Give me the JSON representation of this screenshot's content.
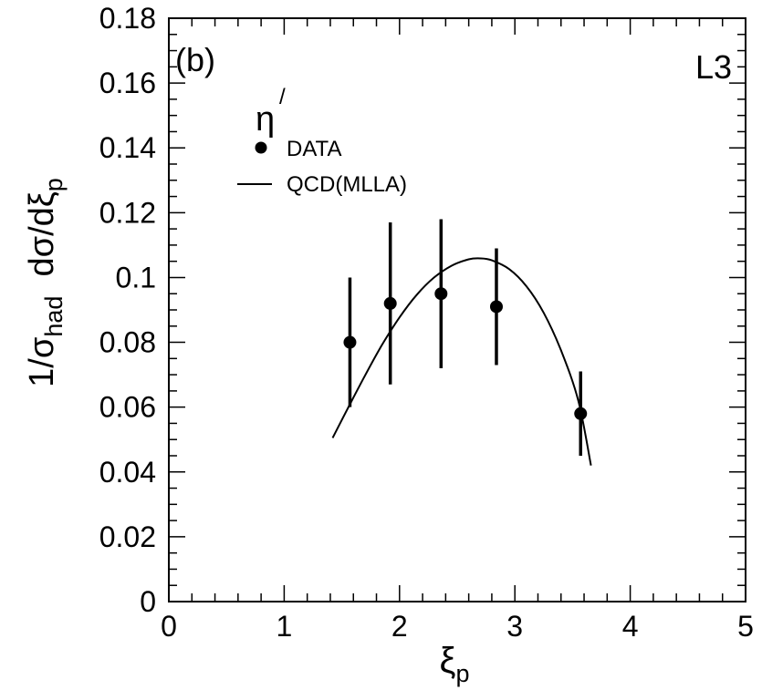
{
  "chart_data": {
    "type": "scatter",
    "panel_label": "(b)",
    "experiment_label": "L3",
    "particle_label": "η",
    "particle_prime": "/",
    "xlabel": "ξ",
    "xlabel_sub": "p",
    "ylabel_parts": {
      "prefix": "1/σ",
      "sub1": "had",
      "middle": "  dσ/dξ",
      "sub2": "p"
    },
    "xlim": [
      0,
      5
    ],
    "ylim": [
      0,
      0.18
    ],
    "x_ticks": [
      0,
      1,
      2,
      3,
      4,
      5
    ],
    "x_tick_labels": [
      "0",
      "1",
      "2",
      "3",
      "4",
      "5"
    ],
    "y_ticks": [
      0,
      0.02,
      0.04,
      0.06,
      0.08,
      0.1,
      0.12,
      0.14,
      0.16,
      0.18
    ],
    "y_tick_labels": [
      "0",
      "0.02",
      "0.04",
      "0.06",
      "0.08",
      "0.1",
      "0.12",
      "0.14",
      "0.16",
      "0.18"
    ],
    "grid": false,
    "legend_position": "top-left",
    "series": [
      {
        "name": "DATA",
        "kind": "points_with_errors",
        "x": [
          1.57,
          1.92,
          2.36,
          2.84,
          3.57
        ],
        "y": [
          0.08,
          0.092,
          0.095,
          0.091,
          0.058
        ],
        "err_low": [
          0.02,
          0.025,
          0.023,
          0.018,
          0.013
        ],
        "err_high": [
          0.02,
          0.025,
          0.023,
          0.018,
          0.013
        ]
      },
      {
        "name": "QCD(MLLA)",
        "kind": "line",
        "x": [
          1.42,
          1.55,
          1.7,
          1.85,
          2.0,
          2.15,
          2.3,
          2.45,
          2.6,
          2.7,
          2.8,
          2.95,
          3.1,
          3.25,
          3.4,
          3.55,
          3.66
        ],
        "y": [
          0.0505,
          0.0595,
          0.0697,
          0.0793,
          0.0877,
          0.0947,
          0.1,
          0.1036,
          0.1056,
          0.1059,
          0.1053,
          0.1026,
          0.0973,
          0.0891,
          0.0775,
          0.062,
          0.042
        ]
      }
    ]
  }
}
